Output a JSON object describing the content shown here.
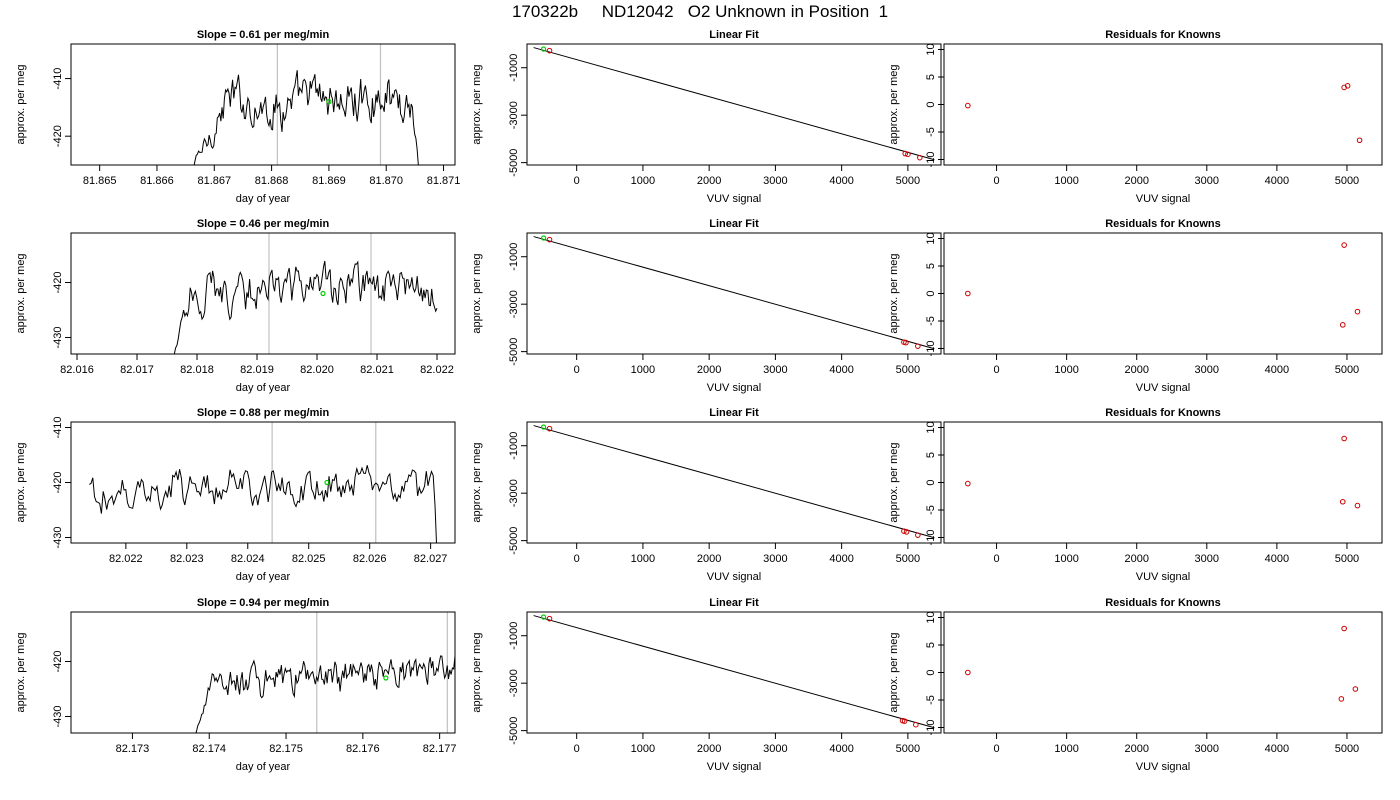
{
  "figure": {
    "title": "170322b     ND12042   O2 Unknown in Position  1"
  },
  "colors": {
    "trace": "#000000",
    "marker_green": "#00cc00",
    "known_points": "#cc0000",
    "vertical_lines": "#c0c0c0",
    "fit_line": "#000000"
  },
  "chart_data": [
    {
      "row": 1,
      "type": "line",
      "title": "Slope =  0.61  per meg/min",
      "xlabel": "day of year",
      "ylabel": "approx. per meg",
      "xlim": [
        81.8645,
        81.8712
      ],
      "ylim": [
        -425,
        -404
      ],
      "xticks": [
        "81.865",
        "81.866",
        "81.867",
        "81.868",
        "81.869",
        "81.870",
        "81.871"
      ],
      "yticks": [
        "-410",
        "-420"
      ],
      "start_x": 81.8665,
      "end_x": 81.8706,
      "base": -414,
      "jitter": 3.5,
      "rise_from": -428,
      "rise_end_x": 81.8672,
      "drop_to": -428,
      "drop_start_x": 81.87045,
      "vlines": [
        81.8681,
        81.8699
      ],
      "green_point": [
        81.869,
        -414
      ]
    },
    {
      "row": 1,
      "type": "scatter",
      "title": "Linear Fit",
      "xlabel": "VUV signal",
      "ylabel": "approx. per meg",
      "xlim": [
        -750,
        5500
      ],
      "ylim": [
        -5100,
        0
      ],
      "xticks": [
        "0",
        "1000",
        "2000",
        "3000",
        "4000",
        "5000"
      ],
      "yticks": [
        "-1000",
        "-3000",
        "-5000"
      ],
      "fit_line": [
        [
          -650,
          -150
        ],
        [
          5400,
          -4880
        ]
      ],
      "known_points": [
        [
          -410,
          -280
        ],
        [
          4960,
          -4620
        ],
        [
          5000,
          -4650
        ],
        [
          5180,
          -4790
        ]
      ],
      "green_points": [
        [
          -500,
          -210
        ]
      ]
    },
    {
      "row": 1,
      "type": "scatter",
      "title": "Residuals for Knowns",
      "xlabel": "VUV signal",
      "ylabel": "approx. per meg",
      "xlim": [
        -750,
        5500
      ],
      "ylim": [
        -11,
        11
      ],
      "xticks": [
        "0",
        "1000",
        "2000",
        "3000",
        "4000",
        "5000"
      ],
      "yticks": [
        "-10",
        "-5",
        "0",
        "5",
        "10"
      ],
      "known_points": [
        [
          -410,
          -0.2
        ],
        [
          4960,
          3.1
        ],
        [
          5010,
          3.4
        ],
        [
          5180,
          -6.5
        ]
      ]
    },
    {
      "row": 2,
      "type": "line",
      "title": "Slope =  0.46  per meg/min",
      "xlabel": "day of year",
      "ylabel": "approx. per meg",
      "xlim": [
        82.0159,
        82.0223
      ],
      "ylim": [
        -433,
        -411
      ],
      "xticks": [
        "82.016",
        "82.017",
        "82.018",
        "82.019",
        "82.020",
        "82.021",
        "82.022"
      ],
      "yticks": [
        "-420",
        "-430"
      ],
      "start_x": 82.0176,
      "end_x": 82.022,
      "base": -421.5,
      "jitter": 3.5,
      "rise_from": -434,
      "rise_end_x": 82.0179,
      "drop_to": null,
      "drop_start_x": null,
      "vlines": [
        82.0192,
        82.0209
      ],
      "green_point": [
        82.0201,
        -422
      ]
    },
    {
      "row": 2,
      "type": "scatter",
      "title": "Linear Fit",
      "xlabel": "VUV signal",
      "ylabel": "approx. per meg",
      "xlim": [
        -750,
        5500
      ],
      "ylim": [
        -5100,
        0
      ],
      "xticks": [
        "0",
        "1000",
        "2000",
        "3000",
        "4000",
        "5000"
      ],
      "yticks": [
        "-1000",
        "-3000",
        "-5000"
      ],
      "fit_line": [
        [
          -650,
          -150
        ],
        [
          5400,
          -4880
        ]
      ],
      "known_points": [
        [
          -410,
          -280
        ],
        [
          4940,
          -4600
        ],
        [
          4970,
          -4620
        ],
        [
          5150,
          -4770
        ]
      ],
      "green_points": [
        [
          -500,
          -210
        ]
      ]
    },
    {
      "row": 2,
      "type": "scatter",
      "title": "Residuals for Knowns",
      "xlabel": "VUV signal",
      "ylabel": "approx. per meg",
      "xlim": [
        -750,
        5500
      ],
      "ylim": [
        -11,
        11
      ],
      "xticks": [
        "0",
        "1000",
        "2000",
        "3000",
        "4000",
        "5000"
      ],
      "yticks": [
        "-10",
        "-5",
        "0",
        "5",
        "10"
      ],
      "known_points": [
        [
          -410,
          0
        ],
        [
          4960,
          8.8
        ],
        [
          4940,
          -5.7
        ],
        [
          5150,
          -3.3
        ]
      ]
    },
    {
      "row": 3,
      "type": "line",
      "title": "Slope =  0.88  per meg/min",
      "xlabel": "day of year",
      "ylabel": "approx. per meg",
      "xlim": [
        82.0211,
        82.0274
      ],
      "ylim": [
        -431,
        -409
      ],
      "xticks": [
        "82.022",
        "82.023",
        "82.024",
        "82.025",
        "82.026",
        "82.027"
      ],
      "yticks": [
        "-410",
        "-420",
        "-430"
      ],
      "start_x": 82.0214,
      "end_x": 82.0271,
      "base": -421,
      "jitter": 3.2,
      "rise_from": null,
      "rise_end_x": null,
      "drop_to": -432,
      "drop_start_x": 82.02705,
      "vlines": [
        82.0244,
        82.0261
      ],
      "green_point": [
        82.0253,
        -420
      ]
    },
    {
      "row": 3,
      "type": "scatter",
      "title": "Linear Fit",
      "xlabel": "VUV signal",
      "ylabel": "approx. per meg",
      "xlim": [
        -750,
        5500
      ],
      "ylim": [
        -5100,
        0
      ],
      "xticks": [
        "0",
        "1000",
        "2000",
        "3000",
        "4000",
        "5000"
      ],
      "yticks": [
        "-1000",
        "-3000",
        "-5000"
      ],
      "fit_line": [
        [
          -650,
          -150
        ],
        [
          5400,
          -4880
        ]
      ],
      "known_points": [
        [
          -410,
          -280
        ],
        [
          4940,
          -4600
        ],
        [
          4980,
          -4630
        ],
        [
          5150,
          -4770
        ]
      ],
      "green_points": [
        [
          -500,
          -210
        ]
      ]
    },
    {
      "row": 3,
      "type": "scatter",
      "title": "Residuals for Knowns",
      "xlabel": "VUV signal",
      "ylabel": "approx. per meg",
      "xlim": [
        -750,
        5500
      ],
      "ylim": [
        -11,
        11
      ],
      "xticks": [
        "0",
        "1000",
        "2000",
        "3000",
        "4000",
        "5000"
      ],
      "yticks": [
        "-10",
        "-5",
        "0",
        "5",
        "10"
      ],
      "known_points": [
        [
          -410,
          -0.2
        ],
        [
          4960,
          8.0
        ],
        [
          4940,
          -3.5
        ],
        [
          5150,
          -4.2
        ]
      ]
    },
    {
      "row": 4,
      "type": "line",
      "title": "Slope =  0.94  per meg/min",
      "xlabel": "day of year",
      "ylabel": "approx. per meg",
      "xlim": [
        82.1722,
        82.1772
      ],
      "ylim": [
        -433,
        -411
      ],
      "xticks": [
        "82.173",
        "82.174",
        "82.175",
        "82.176",
        "82.177"
      ],
      "yticks": [
        "-420",
        "-430"
      ],
      "start_x": 82.1738,
      "end_x": 82.1772,
      "base": -423,
      "jitter": 3.0,
      "rise_from": -434,
      "rise_end_x": 82.17405,
      "drop_to": null,
      "drop_start_x": null,
      "trend": 4.5,
      "vlines": [
        82.1754,
        82.1771
      ],
      "green_point": [
        82.1763,
        -423
      ]
    },
    {
      "row": 4,
      "type": "scatter",
      "title": "Linear Fit",
      "xlabel": "VUV signal",
      "ylabel": "approx. per meg",
      "xlim": [
        -750,
        5500
      ],
      "ylim": [
        -5100,
        0
      ],
      "xticks": [
        "0",
        "1000",
        "2000",
        "3000",
        "4000",
        "5000"
      ],
      "yticks": [
        "-1000",
        "-3000",
        "-5000"
      ],
      "fit_line": [
        [
          -650,
          -150
        ],
        [
          5400,
          -4880
        ]
      ],
      "known_points": [
        [
          -410,
          -280
        ],
        [
          4920,
          -4580
        ],
        [
          4950,
          -4600
        ],
        [
          5120,
          -4750
        ]
      ],
      "green_points": [
        [
          -500,
          -210
        ]
      ]
    },
    {
      "row": 4,
      "type": "scatter",
      "title": "Residuals for Knowns",
      "xlabel": "VUV signal",
      "ylabel": "approx. per meg",
      "xlim": [
        -750,
        5500
      ],
      "ylim": [
        -11,
        11
      ],
      "xticks": [
        "0",
        "1000",
        "2000",
        "3000",
        "4000",
        "5000"
      ],
      "yticks": [
        "-10",
        "-5",
        "0",
        "5",
        "10"
      ],
      "known_points": [
        [
          -410,
          0
        ],
        [
          4960,
          8.0
        ],
        [
          4920,
          -4.8
        ],
        [
          5120,
          -3.0
        ]
      ]
    }
  ]
}
